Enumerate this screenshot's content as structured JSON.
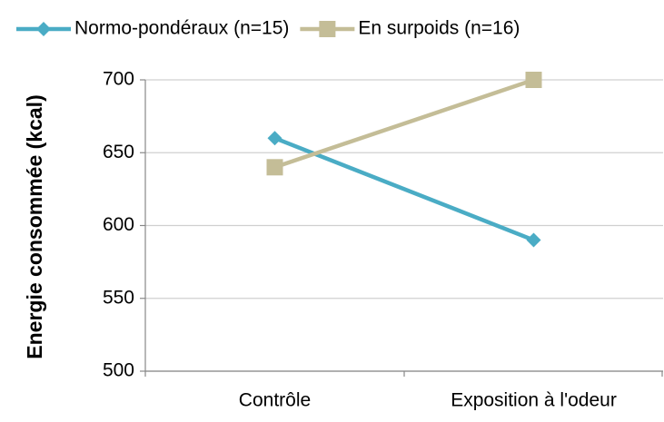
{
  "chart_data": {
    "type": "line",
    "y_label": "Energie consommée (kcal)",
    "categories": [
      "Contrôle",
      "Exposition à l'odeur"
    ],
    "series": [
      {
        "name": "Normo-pondéraux (n=15)",
        "color": "#4aacc5",
        "marker": "diamond",
        "values": [
          660,
          590
        ]
      },
      {
        "name": "En surpoids (n=16)",
        "color": "#c4bd97",
        "marker": "square",
        "values": [
          640,
          700
        ]
      }
    ],
    "ylim": [
      500,
      700
    ],
    "yticks": [
      500,
      550,
      600,
      650,
      700
    ],
    "grid": true,
    "legend": "top"
  }
}
